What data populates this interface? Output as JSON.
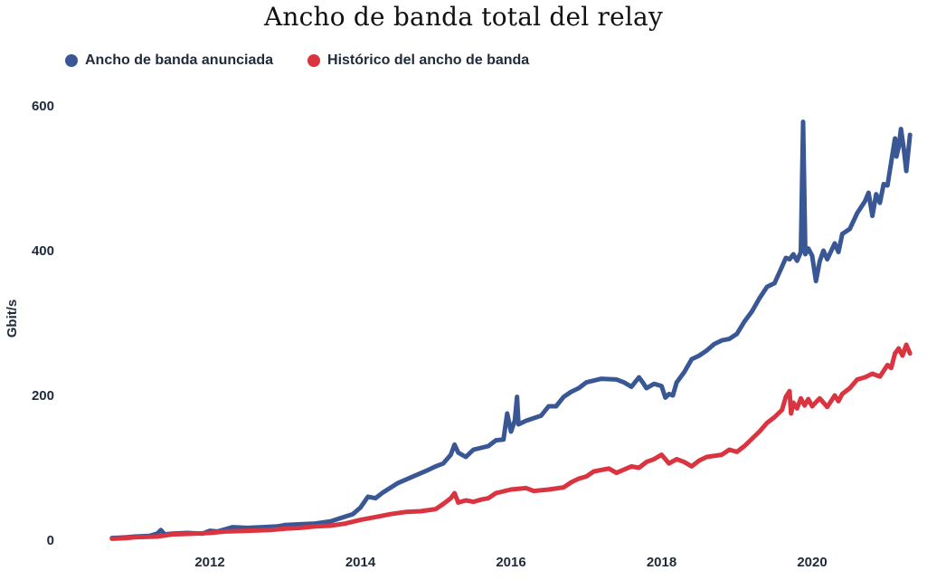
{
  "chart_data": {
    "type": "line",
    "title": "Ancho de banda total del relay",
    "xlabel": "",
    "ylabel": "Gbit/s",
    "xlim": [
      2010.5,
      2021.3
    ],
    "ylim": [
      0,
      620
    ],
    "x_ticks": [
      2012,
      2014,
      2016,
      2018,
      2020
    ],
    "y_ticks": [
      0,
      200,
      400,
      600
    ],
    "grid": false,
    "legend_position": "top-left",
    "series": [
      {
        "name": "Ancho de banda anunciada",
        "color": "#3a5795",
        "points": [
          [
            2010.7,
            3
          ],
          [
            2010.9,
            4
          ],
          [
            2011.0,
            5
          ],
          [
            2011.2,
            6
          ],
          [
            2011.3,
            9
          ],
          [
            2011.35,
            14
          ],
          [
            2011.4,
            8
          ],
          [
            2011.5,
            9
          ],
          [
            2011.7,
            10
          ],
          [
            2011.9,
            9
          ],
          [
            2012.0,
            13
          ],
          [
            2012.1,
            12
          ],
          [
            2012.3,
            18
          ],
          [
            2012.5,
            17
          ],
          [
            2012.7,
            18
          ],
          [
            2012.9,
            19
          ],
          [
            2013.0,
            21
          ],
          [
            2013.2,
            22
          ],
          [
            2013.4,
            23
          ],
          [
            2013.6,
            26
          ],
          [
            2013.75,
            31
          ],
          [
            2013.9,
            36
          ],
          [
            2014.0,
            45
          ],
          [
            2014.1,
            60
          ],
          [
            2014.2,
            58
          ],
          [
            2014.3,
            66
          ],
          [
            2014.5,
            79
          ],
          [
            2014.7,
            88
          ],
          [
            2014.9,
            97
          ],
          [
            2015.0,
            102
          ],
          [
            2015.1,
            106
          ],
          [
            2015.2,
            118
          ],
          [
            2015.25,
            132
          ],
          [
            2015.3,
            121
          ],
          [
            2015.4,
            115
          ],
          [
            2015.5,
            125
          ],
          [
            2015.7,
            130
          ],
          [
            2015.8,
            138
          ],
          [
            2015.9,
            139
          ],
          [
            2015.95,
            175
          ],
          [
            2016.0,
            150
          ],
          [
            2016.05,
            165
          ],
          [
            2016.08,
            198
          ],
          [
            2016.1,
            160
          ],
          [
            2016.2,
            165
          ],
          [
            2016.4,
            172
          ],
          [
            2016.5,
            185
          ],
          [
            2016.6,
            185
          ],
          [
            2016.7,
            198
          ],
          [
            2016.8,
            205
          ],
          [
            2016.9,
            210
          ],
          [
            2017.0,
            218
          ],
          [
            2017.2,
            223
          ],
          [
            2017.4,
            222
          ],
          [
            2017.5,
            218
          ],
          [
            2017.6,
            212
          ],
          [
            2017.7,
            225
          ],
          [
            2017.75,
            218
          ],
          [
            2017.8,
            210
          ],
          [
            2017.9,
            216
          ],
          [
            2018.0,
            213
          ],
          [
            2018.05,
            197
          ],
          [
            2018.1,
            202
          ],
          [
            2018.15,
            200
          ],
          [
            2018.2,
            218
          ],
          [
            2018.3,
            232
          ],
          [
            2018.4,
            250
          ],
          [
            2018.5,
            255
          ],
          [
            2018.6,
            262
          ],
          [
            2018.7,
            271
          ],
          [
            2018.8,
            276
          ],
          [
            2018.9,
            278
          ],
          [
            2019.0,
            285
          ],
          [
            2019.1,
            302
          ],
          [
            2019.2,
            316
          ],
          [
            2019.3,
            334
          ],
          [
            2019.4,
            350
          ],
          [
            2019.5,
            355
          ],
          [
            2019.6,
            378
          ],
          [
            2019.65,
            390
          ],
          [
            2019.7,
            388
          ],
          [
            2019.75,
            395
          ],
          [
            2019.8,
            386
          ],
          [
            2019.85,
            398
          ],
          [
            2019.88,
            578
          ],
          [
            2019.91,
            395
          ],
          [
            2019.95,
            403
          ],
          [
            2020.0,
            393
          ],
          [
            2020.05,
            358
          ],
          [
            2020.1,
            385
          ],
          [
            2020.15,
            400
          ],
          [
            2020.2,
            388
          ],
          [
            2020.3,
            410
          ],
          [
            2020.35,
            398
          ],
          [
            2020.4,
            423
          ],
          [
            2020.5,
            430
          ],
          [
            2020.6,
            452
          ],
          [
            2020.7,
            468
          ],
          [
            2020.75,
            480
          ],
          [
            2020.8,
            448
          ],
          [
            2020.85,
            478
          ],
          [
            2020.9,
            466
          ],
          [
            2020.95,
            492
          ],
          [
            2021.0,
            490
          ],
          [
            2021.05,
            522
          ],
          [
            2021.1,
            555
          ],
          [
            2021.12,
            530
          ],
          [
            2021.15,
            543
          ],
          [
            2021.18,
            568
          ],
          [
            2021.22,
            538
          ],
          [
            2021.25,
            510
          ],
          [
            2021.3,
            560
          ]
        ]
      },
      {
        "name": "Histórico del ancho de banda",
        "color": "#d9343f",
        "points": [
          [
            2010.7,
            2
          ],
          [
            2010.9,
            3
          ],
          [
            2011.0,
            4
          ],
          [
            2011.3,
            5
          ],
          [
            2011.5,
            8
          ],
          [
            2011.8,
            9
          ],
          [
            2012.0,
            10
          ],
          [
            2012.2,
            12
          ],
          [
            2012.5,
            13
          ],
          [
            2012.8,
            14
          ],
          [
            2013.0,
            16
          ],
          [
            2013.2,
            17
          ],
          [
            2013.4,
            19
          ],
          [
            2013.6,
            20
          ],
          [
            2013.8,
            23
          ],
          [
            2014.0,
            28
          ],
          [
            2014.2,
            32
          ],
          [
            2014.4,
            36
          ],
          [
            2014.6,
            39
          ],
          [
            2014.8,
            40
          ],
          [
            2015.0,
            43
          ],
          [
            2015.1,
            50
          ],
          [
            2015.2,
            58
          ],
          [
            2015.25,
            65
          ],
          [
            2015.3,
            52
          ],
          [
            2015.4,
            55
          ],
          [
            2015.5,
            53
          ],
          [
            2015.6,
            56
          ],
          [
            2015.7,
            58
          ],
          [
            2015.8,
            65
          ],
          [
            2016.0,
            70
          ],
          [
            2016.2,
            72
          ],
          [
            2016.3,
            68
          ],
          [
            2016.5,
            70
          ],
          [
            2016.7,
            73
          ],
          [
            2016.8,
            80
          ],
          [
            2016.9,
            85
          ],
          [
            2017.0,
            88
          ],
          [
            2017.1,
            95
          ],
          [
            2017.3,
            99
          ],
          [
            2017.4,
            93
          ],
          [
            2017.6,
            102
          ],
          [
            2017.7,
            100
          ],
          [
            2017.8,
            108
          ],
          [
            2017.9,
            112
          ],
          [
            2018.0,
            118
          ],
          [
            2018.1,
            106
          ],
          [
            2018.2,
            112
          ],
          [
            2018.3,
            108
          ],
          [
            2018.4,
            102
          ],
          [
            2018.5,
            110
          ],
          [
            2018.6,
            115
          ],
          [
            2018.8,
            118
          ],
          [
            2018.9,
            125
          ],
          [
            2019.0,
            122
          ],
          [
            2019.1,
            130
          ],
          [
            2019.2,
            140
          ],
          [
            2019.3,
            150
          ],
          [
            2019.4,
            162
          ],
          [
            2019.5,
            170
          ],
          [
            2019.6,
            180
          ],
          [
            2019.65,
            198
          ],
          [
            2019.7,
            206
          ],
          [
            2019.72,
            175
          ],
          [
            2019.75,
            190
          ],
          [
            2019.8,
            182
          ],
          [
            2019.85,
            196
          ],
          [
            2019.9,
            186
          ],
          [
            2019.95,
            195
          ],
          [
            2020.0,
            185
          ],
          [
            2020.1,
            196
          ],
          [
            2020.2,
            184
          ],
          [
            2020.3,
            200
          ],
          [
            2020.35,
            192
          ],
          [
            2020.4,
            202
          ],
          [
            2020.5,
            210
          ],
          [
            2020.6,
            222
          ],
          [
            2020.7,
            225
          ],
          [
            2020.8,
            230
          ],
          [
            2020.9,
            226
          ],
          [
            2021.0,
            242
          ],
          [
            2021.05,
            238
          ],
          [
            2021.1,
            258
          ],
          [
            2021.15,
            265
          ],
          [
            2021.2,
            255
          ],
          [
            2021.25,
            270
          ],
          [
            2021.3,
            258
          ]
        ]
      }
    ]
  }
}
